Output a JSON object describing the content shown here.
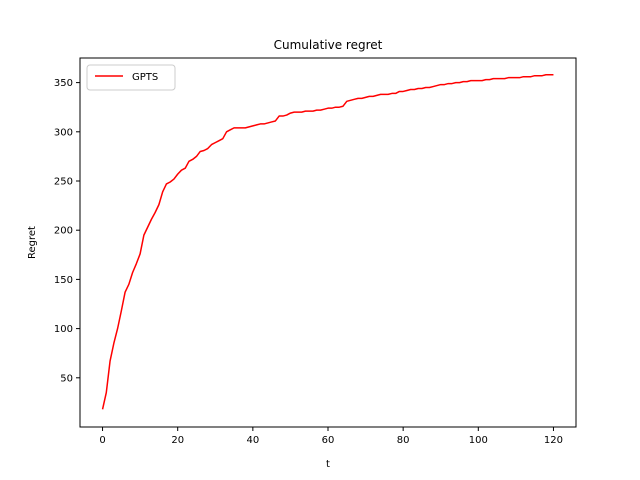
{
  "chart_data": {
    "type": "line",
    "title": "Cumulative regret",
    "xlabel": "t",
    "ylabel": "Regret",
    "xlim": [
      -6,
      126
    ],
    "ylim": [
      0,
      375
    ],
    "xticks": [
      0,
      20,
      40,
      60,
      80,
      100,
      120
    ],
    "yticks": [
      50,
      100,
      150,
      200,
      250,
      300,
      350
    ],
    "grid": false,
    "legend_position": "top-left",
    "series": [
      {
        "name": "GPTS",
        "color": "#ff0000",
        "x": [
          0,
          1,
          2,
          3,
          4,
          5,
          6,
          7,
          8,
          9,
          10,
          11,
          12,
          13,
          14,
          15,
          16,
          17,
          18,
          19,
          20,
          21,
          22,
          23,
          24,
          25,
          26,
          27,
          28,
          29,
          30,
          31,
          32,
          33,
          34,
          35,
          36,
          37,
          38,
          39,
          40,
          41,
          42,
          43,
          44,
          45,
          46,
          47,
          48,
          49,
          50,
          51,
          52,
          53,
          54,
          55,
          56,
          57,
          58,
          59,
          60,
          61,
          62,
          63,
          64,
          65,
          66,
          67,
          68,
          69,
          70,
          71,
          72,
          73,
          74,
          75,
          76,
          77,
          78,
          79,
          80,
          81,
          82,
          83,
          84,
          85,
          86,
          87,
          88,
          89,
          90,
          91,
          92,
          93,
          94,
          95,
          96,
          97,
          98,
          99,
          100,
          101,
          102,
          103,
          104,
          105,
          106,
          107,
          108,
          109,
          110,
          111,
          112,
          113,
          114,
          115,
          116,
          117,
          118,
          119,
          120
        ],
        "y": [
          18,
          35,
          67,
          85,
          100,
          118,
          137,
          145,
          157,
          166,
          176,
          195,
          203,
          211,
          218,
          226,
          239,
          247,
          249,
          252,
          257,
          261,
          263,
          270,
          272,
          275,
          280,
          281,
          283,
          287,
          289,
          291,
          293,
          300,
          302,
          304,
          304,
          304,
          304,
          305,
          306,
          307,
          308,
          308,
          309,
          310,
          311,
          316,
          316,
          317,
          319,
          320,
          320,
          320,
          321,
          321,
          321,
          322,
          322,
          323,
          324,
          324,
          325,
          325,
          326,
          331,
          332,
          333,
          334,
          334,
          335,
          336,
          336,
          337,
          338,
          338,
          338,
          339,
          339,
          341,
          341,
          342,
          343,
          343,
          344,
          344,
          345,
          345,
          346,
          347,
          348,
          348,
          349,
          349,
          350,
          350,
          351,
          351,
          352,
          352,
          352,
          352,
          353,
          353,
          354,
          354,
          354,
          354,
          355,
          355,
          355,
          355,
          356,
          356,
          356,
          357,
          357,
          357,
          358,
          358,
          358
        ]
      }
    ]
  }
}
